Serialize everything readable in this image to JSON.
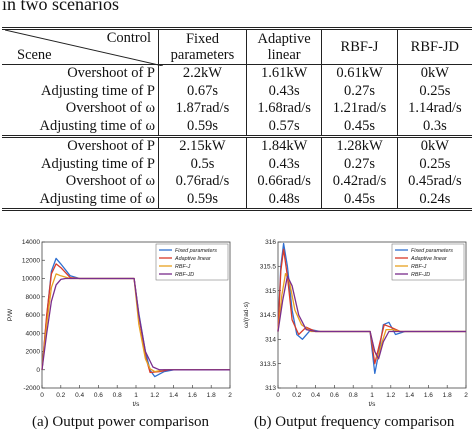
{
  "caption": "in two scenarios",
  "table": {
    "head_control": "Control",
    "head_scene": "Scene",
    "columns": [
      [
        "Fixed",
        "parameters"
      ],
      [
        "Adaptive",
        "linear"
      ],
      [
        "RBF-J"
      ],
      [
        "RBF-JD"
      ]
    ],
    "groups": [
      [
        {
          "label": "Overshoot of P",
          "values": [
            "2.2kW",
            "1.61kW",
            "0.61kW",
            "0kW"
          ]
        },
        {
          "label": "Adjusting time of P",
          "values": [
            "0.67s",
            "0.43s",
            "0.27s",
            "0.25s"
          ]
        },
        {
          "label": "Overshoot of ω",
          "values": [
            "1.87rad/s",
            "1.68rad/s",
            "1.21rad/s",
            "1.14rad/s"
          ]
        },
        {
          "label": "Adjusting time of ω",
          "values": [
            "0.59s",
            "0.57s",
            "0.45s",
            "0.3s"
          ]
        }
      ],
      [
        {
          "label": "Overshoot of P",
          "values": [
            "2.15kW",
            "1.84kW",
            "1.28kW",
            "0kW"
          ]
        },
        {
          "label": "Adjusting time of P",
          "values": [
            "0.5s",
            "0.43s",
            "0.27s",
            "0.25s"
          ]
        },
        {
          "label": "Overshoot of ω",
          "values": [
            "0.76rad/s",
            "0.66rad/s",
            "0.42rad/s",
            "0.45rad/s"
          ]
        },
        {
          "label": "Adjusting time of ω",
          "values": [
            "0.59s",
            "0.48s",
            "0.45s",
            "0.24s"
          ]
        }
      ]
    ]
  },
  "colors": {
    "series": [
      "#2f6fd0",
      "#d83a2a",
      "#e8a020",
      "#7a2d8c"
    ]
  },
  "chart_data": [
    {
      "type": "line",
      "ylabel": "P/W",
      "xlabel": "t/s",
      "xlim": [
        0,
        2
      ],
      "ylim": [
        -2000,
        14000
      ],
      "xticks": [
        "0",
        "0.2",
        "0.4",
        "0.6",
        "0.8",
        "1",
        "1.2",
        "1.4",
        "1.6",
        "1.8",
        "2"
      ],
      "yticks": [
        "-2000",
        "0",
        "2000",
        "4000",
        "6000",
        "8000",
        "10000",
        "12000",
        "14000"
      ],
      "legend": "top-right",
      "series": [
        {
          "name": "Fixed parameters",
          "points": [
            [
              0,
              0
            ],
            [
              0.05,
              5800
            ],
            [
              0.1,
              10800
            ],
            [
              0.15,
              12200
            ],
            [
              0.2,
              11600
            ],
            [
              0.3,
              10300
            ],
            [
              0.4,
              10000
            ],
            [
              0.7,
              10000
            ],
            [
              0.98,
              10000
            ],
            [
              1.03,
              6200
            ],
            [
              1.1,
              2000
            ],
            [
              1.15,
              -50
            ],
            [
              1.2,
              -750
            ],
            [
              1.3,
              -200
            ],
            [
              1.4,
              0
            ],
            [
              2,
              0
            ]
          ]
        },
        {
          "name": "Adaptive linear",
          "points": [
            [
              0,
              0
            ],
            [
              0.05,
              6000
            ],
            [
              0.1,
              10500
            ],
            [
              0.15,
              11600
            ],
            [
              0.2,
              11200
            ],
            [
              0.3,
              10100
            ],
            [
              0.4,
              10000
            ],
            [
              0.98,
              10000
            ],
            [
              1.03,
              6000
            ],
            [
              1.1,
              1500
            ],
            [
              1.15,
              -300
            ],
            [
              1.25,
              -200
            ],
            [
              1.35,
              0
            ],
            [
              2,
              0
            ]
          ]
        },
        {
          "name": "RBF-J",
          "points": [
            [
              0,
              0
            ],
            [
              0.05,
              5000
            ],
            [
              0.1,
              9000
            ],
            [
              0.15,
              10500
            ],
            [
              0.2,
              10300
            ],
            [
              0.3,
              10000
            ],
            [
              0.98,
              10000
            ],
            [
              1.03,
              5000
            ],
            [
              1.1,
              1200
            ],
            [
              1.15,
              100
            ],
            [
              1.2,
              -200
            ],
            [
              1.3,
              0
            ],
            [
              2,
              0
            ]
          ]
        },
        {
          "name": "RBF-JD",
          "points": [
            [
              0,
              0
            ],
            [
              0.05,
              4000
            ],
            [
              0.1,
              7500
            ],
            [
              0.15,
              9300
            ],
            [
              0.2,
              9900
            ],
            [
              0.25,
              10000
            ],
            [
              0.98,
              10000
            ],
            [
              1.03,
              6000
            ],
            [
              1.1,
              2000
            ],
            [
              1.18,
              300
            ],
            [
              1.25,
              0
            ],
            [
              2,
              0
            ]
          ]
        }
      ]
    },
    {
      "type": "line",
      "ylabel": "ω/(rad·s)",
      "xlabel": "t/s",
      "xlim": [
        0,
        2
      ],
      "ylim": [
        313,
        316
      ],
      "xticks": [
        "0",
        "0.2",
        "0.4",
        "0.6",
        "0.8",
        "1",
        "1.2",
        "1.4",
        "1.6",
        "1.8",
        "2"
      ],
      "yticks": [
        "313",
        "313.5",
        "314",
        "314.5",
        "315",
        "315.5",
        "316"
      ],
      "legend": "top-right",
      "series": [
        {
          "name": "Fixed parameters",
          "points": [
            [
              0,
              314.16
            ],
            [
              0.03,
              315.5
            ],
            [
              0.06,
              315.97
            ],
            [
              0.1,
              315.5
            ],
            [
              0.15,
              314.6
            ],
            [
              0.2,
              314.1
            ],
            [
              0.26,
              314.0
            ],
            [
              0.35,
              314.2
            ],
            [
              0.45,
              314.16
            ],
            [
              0.98,
              314.16
            ],
            [
              1.0,
              313.8
            ],
            [
              1.03,
              313.3
            ],
            [
              1.07,
              313.7
            ],
            [
              1.12,
              314.3
            ],
            [
              1.18,
              314.35
            ],
            [
              1.25,
              314.1
            ],
            [
              1.35,
              314.16
            ],
            [
              2,
              314.16
            ]
          ]
        },
        {
          "name": "Adaptive linear",
          "points": [
            [
              0,
              314.16
            ],
            [
              0.03,
              315.4
            ],
            [
              0.06,
              315.85
            ],
            [
              0.1,
              315.3
            ],
            [
              0.15,
              314.4
            ],
            [
              0.22,
              314.1
            ],
            [
              0.3,
              314.25
            ],
            [
              0.4,
              314.16
            ],
            [
              0.98,
              314.16
            ],
            [
              1.0,
              313.9
            ],
            [
              1.03,
              313.5
            ],
            [
              1.08,
              313.9
            ],
            [
              1.13,
              314.3
            ],
            [
              1.2,
              314.25
            ],
            [
              1.3,
              314.16
            ],
            [
              2,
              314.16
            ]
          ]
        },
        {
          "name": "RBF-J",
          "points": [
            [
              0,
              314.16
            ],
            [
              0.04,
              314.9
            ],
            [
              0.08,
              315.35
            ],
            [
              0.12,
              315.2
            ],
            [
              0.18,
              314.6
            ],
            [
              0.25,
              314.3
            ],
            [
              0.35,
              314.16
            ],
            [
              0.98,
              314.16
            ],
            [
              1.02,
              313.8
            ],
            [
              1.06,
              313.6
            ],
            [
              1.1,
              313.9
            ],
            [
              1.15,
              314.2
            ],
            [
              1.22,
              314.2
            ],
            [
              1.3,
              314.16
            ],
            [
              2,
              314.16
            ]
          ]
        },
        {
          "name": "RBF-JD",
          "points": [
            [
              0,
              314.16
            ],
            [
              0.05,
              314.8
            ],
            [
              0.1,
              315.3
            ],
            [
              0.15,
              315.1
            ],
            [
              0.22,
              314.5
            ],
            [
              0.3,
              314.2
            ],
            [
              0.4,
              314.16
            ],
            [
              0.98,
              314.16
            ],
            [
              1.03,
              313.75
            ],
            [
              1.07,
              313.6
            ],
            [
              1.12,
              313.95
            ],
            [
              1.18,
              314.16
            ],
            [
              2,
              314.16
            ]
          ]
        }
      ]
    }
  ],
  "subcaptions": [
    "(a) Output power comparison",
    "(b) Output frequency comparison"
  ]
}
